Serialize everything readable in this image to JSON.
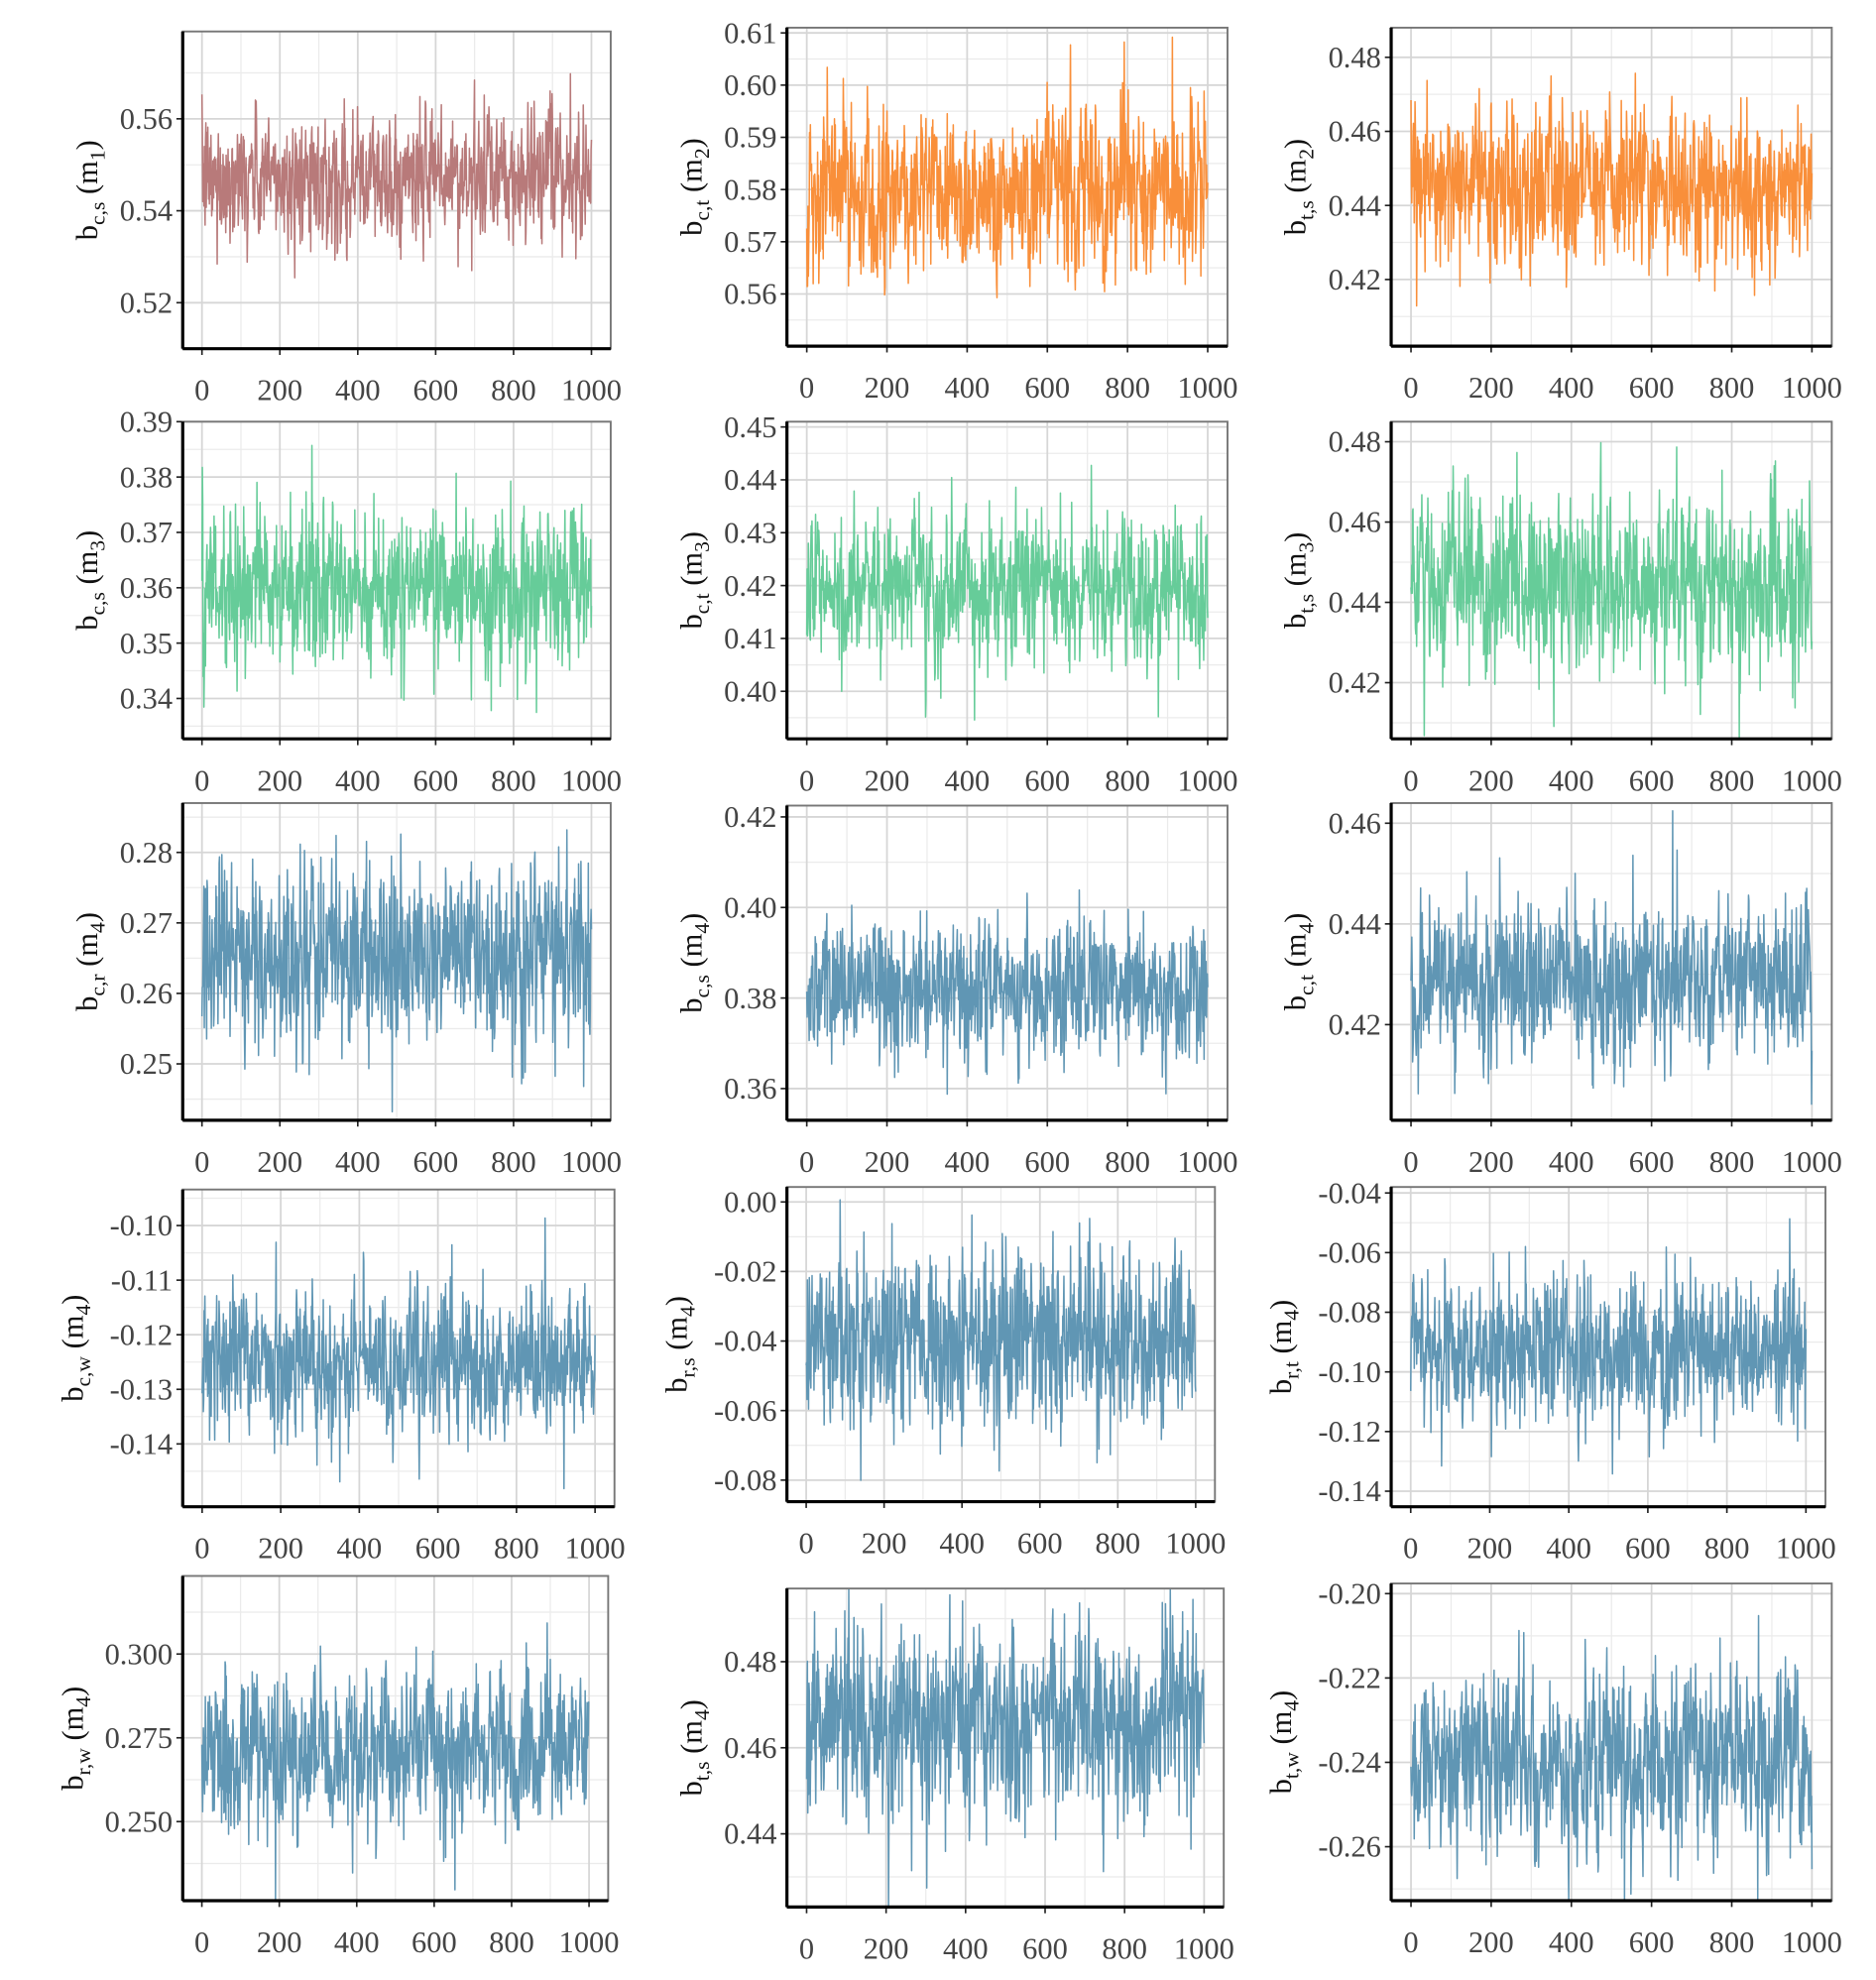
{
  "chart_data": [
    {
      "type": "line",
      "ylabel": {
        "b": "b",
        "sub": "c,s",
        "model": "m",
        "msub": "1"
      },
      "color": "#b87a7a",
      "n": 1000,
      "mean": 0.547,
      "sd": 0.0068,
      "ylim": [
        0.51,
        0.579
      ],
      "yticks": [
        0.52,
        0.54,
        0.56
      ],
      "ytick_labels": [
        "0.52",
        "0.54",
        "0.56"
      ],
      "xlim": [
        0,
        1000
      ],
      "xticks": [
        0,
        200,
        400,
        600,
        800,
        1000
      ],
      "xtick_labels": [
        "0",
        "200",
        "400",
        "600",
        "800",
        "1000"
      ],
      "grid": true
    },
    {
      "type": "line",
      "ylabel": {
        "b": "b",
        "sub": "c,t",
        "model": "m",
        "msub": "2"
      },
      "color": "#f98f3a",
      "n": 1000,
      "mean": 0.58,
      "sd": 0.0078,
      "ylim": [
        0.55,
        0.611
      ],
      "yticks": [
        0.56,
        0.57,
        0.58,
        0.59,
        0.6,
        0.61
      ],
      "ytick_labels": [
        "0.56",
        "0.57",
        "0.58",
        "0.59",
        "0.60",
        "0.61"
      ],
      "xlim": [
        0,
        1000
      ],
      "xticks": [
        0,
        200,
        400,
        600,
        800,
        1000
      ],
      "xtick_labels": [
        "0",
        "200",
        "400",
        "600",
        "800",
        "1000"
      ],
      "grid": true
    },
    {
      "type": "line",
      "ylabel": {
        "b": "b",
        "sub": "t,s",
        "model": "m",
        "msub": "2"
      },
      "color": "#f98f3a",
      "n": 1000,
      "mean": 0.445,
      "sd": 0.0105,
      "ylim": [
        0.402,
        0.488
      ],
      "yticks": [
        0.42,
        0.44,
        0.46,
        0.48
      ],
      "ytick_labels": [
        "0.42",
        "0.44",
        "0.46",
        "0.48"
      ],
      "xlim": [
        0,
        1000
      ],
      "xticks": [
        0,
        200,
        400,
        600,
        800,
        1000
      ],
      "xtick_labels": [
        "0",
        "200",
        "400",
        "600",
        "800",
        "1000"
      ],
      "grid": true
    },
    {
      "type": "line",
      "ylabel": {
        "b": "b",
        "sub": "c,s",
        "model": "m",
        "msub": "3"
      },
      "color": "#66cc99",
      "n": 1000,
      "mean": 0.36,
      "sd": 0.0068,
      "ylim": [
        0.3327,
        0.39
      ],
      "yticks": [
        0.34,
        0.35,
        0.36,
        0.37,
        0.38,
        0.39
      ],
      "ytick_labels": [
        "0.34",
        "0.35",
        "0.36",
        "0.37",
        "0.38",
        "0.39"
      ],
      "xlim": [
        0,
        1000
      ],
      "xticks": [
        0,
        200,
        400,
        600,
        800,
        1000
      ],
      "xtick_labels": [
        "0",
        "200",
        "400",
        "600",
        "800",
        "1000"
      ],
      "grid": true
    },
    {
      "type": "line",
      "ylabel": {
        "b": "b",
        "sub": "c,t",
        "model": "m",
        "msub": "3"
      },
      "color": "#66cc99",
      "n": 1000,
      "mean": 0.42,
      "sd": 0.0068,
      "ylim": [
        0.391,
        0.451
      ],
      "yticks": [
        0.4,
        0.41,
        0.42,
        0.43,
        0.44,
        0.45
      ],
      "ytick_labels": [
        "0.40",
        "0.41",
        "0.42",
        "0.43",
        "0.44",
        "0.45"
      ],
      "xlim": [
        0,
        1000
      ],
      "xticks": [
        0,
        200,
        400,
        600,
        800,
        1000
      ],
      "xtick_labels": [
        "0",
        "200",
        "400",
        "600",
        "800",
        "1000"
      ],
      "grid": true
    },
    {
      "type": "line",
      "ylabel": {
        "b": "b",
        "sub": "t,s",
        "model": "m",
        "msub": "3"
      },
      "color": "#66cc99",
      "n": 1000,
      "mean": 0.445,
      "sd": 0.0105,
      "ylim": [
        0.406,
        0.485
      ],
      "yticks": [
        0.42,
        0.44,
        0.46,
        0.48
      ],
      "ytick_labels": [
        "0.42",
        "0.44",
        "0.46",
        "0.48"
      ],
      "xlim": [
        0,
        1000
      ],
      "xticks": [
        0,
        200,
        400,
        600,
        800,
        1000
      ],
      "xtick_labels": [
        "0",
        "200",
        "400",
        "600",
        "800",
        "1000"
      ],
      "grid": true
    },
    {
      "type": "line",
      "ylabel": {
        "b": "b",
        "sub": "c,r",
        "model": "m",
        "msub": "4"
      },
      "color": "#6096b4",
      "n": 1000,
      "mean": 0.265,
      "sd": 0.0065,
      "ylim": [
        0.242,
        0.287
      ],
      "yticks": [
        0.25,
        0.26,
        0.27,
        0.28
      ],
      "ytick_labels": [
        "0.25",
        "0.26",
        "0.27",
        "0.28"
      ],
      "xlim": [
        0,
        1000
      ],
      "xticks": [
        0,
        200,
        400,
        600,
        800,
        1000
      ],
      "xtick_labels": [
        "0",
        "200",
        "400",
        "600",
        "800",
        "1000"
      ],
      "grid": true
    },
    {
      "type": "line",
      "ylabel": {
        "b": "b",
        "sub": "c,s",
        "model": "m",
        "msub": "4"
      },
      "color": "#6096b4",
      "n": 1000,
      "mean": 0.382,
      "sd": 0.0075,
      "ylim": [
        0.353,
        0.4225
      ],
      "yticks": [
        0.36,
        0.38,
        0.4,
        0.42
      ],
      "ytick_labels": [
        "0.36",
        "0.38",
        "0.40",
        "0.42"
      ],
      "xlim": [
        0,
        1000
      ],
      "xticks": [
        0,
        200,
        400,
        600,
        800,
        1000
      ],
      "xtick_labels": [
        "0",
        "200",
        "400",
        "600",
        "800",
        "1000"
      ],
      "grid": true
    },
    {
      "type": "line",
      "ylabel": {
        "b": "b",
        "sub": "c,t",
        "model": "m",
        "msub": "4"
      },
      "color": "#6096b4",
      "n": 1000,
      "mean": 0.429,
      "sd": 0.0078,
      "ylim": [
        0.401,
        0.464
      ],
      "yticks": [
        0.42,
        0.44,
        0.46
      ],
      "ytick_labels": [
        "0.42",
        "0.44",
        "0.46"
      ],
      "xlim": [
        0,
        1000
      ],
      "xticks": [
        0,
        200,
        400,
        600,
        800,
        1000
      ],
      "xtick_labels": [
        "0",
        "200",
        "400",
        "600",
        "800",
        "1000"
      ],
      "grid": true
    },
    {
      "type": "line",
      "ylabel": {
        "b": "b",
        "sub": "c,w",
        "model": "m",
        "msub": "4"
      },
      "color": "#6096b4",
      "n": 1000,
      "mean": -0.125,
      "sd": 0.0065,
      "ylim": [
        -0.1515,
        -0.0934
      ],
      "yticks": [
        -0.14,
        -0.13,
        -0.12,
        -0.11,
        -0.1
      ],
      "ytick_labels": [
        "-0.14",
        "-0.13",
        "-0.12",
        "-0.11",
        "-0.10"
      ],
      "xlim": [
        0,
        1000
      ],
      "xticks": [
        0,
        200,
        400,
        600,
        800,
        1000
      ],
      "xtick_labels": [
        "0",
        "200",
        "400",
        "600",
        "800",
        "1000"
      ],
      "grid": true
    },
    {
      "type": "line",
      "ylabel": {
        "b": "b",
        "sub": "r,s",
        "model": "m",
        "msub": "4"
      },
      "color": "#6096b4",
      "n": 1000,
      "mean": -0.04,
      "sd": 0.0125,
      "ylim": [
        -0.0862,
        0.0043
      ],
      "yticks": [
        -0.08,
        -0.06,
        -0.04,
        -0.02,
        0.0
      ],
      "ytick_labels": [
        "-0.08",
        "-0.06",
        "-0.04",
        "-0.02",
        "0.00"
      ],
      "xlim": [
        0,
        1000
      ],
      "xticks": [
        0,
        200,
        400,
        600,
        800,
        1000
      ],
      "xtick_labels": [
        "0",
        "200",
        "400",
        "600",
        "800",
        "1000"
      ],
      "grid": true
    },
    {
      "type": "line",
      "ylabel": {
        "b": "b",
        "sub": "r,t",
        "model": "m",
        "msub": "4"
      },
      "color": "#6096b4",
      "n": 1000,
      "mean": -0.092,
      "sd": 0.0125,
      "ylim": [
        -0.1452,
        -0.038
      ],
      "yticks": [
        -0.14,
        -0.12,
        -0.1,
        -0.08,
        -0.06,
        -0.04
      ],
      "ytick_labels": [
        "-0.14",
        "-0.12",
        "-0.10",
        "-0.08",
        "-0.06",
        "-0.04"
      ],
      "xlim": [
        0,
        1000
      ],
      "xticks": [
        0,
        200,
        400,
        600,
        800,
        1000
      ],
      "xtick_labels": [
        "0",
        "200",
        "400",
        "600",
        "800",
        "1000"
      ],
      "grid": true
    },
    {
      "type": "line",
      "ylabel": {
        "b": "b",
        "sub": "r,w",
        "model": "m",
        "msub": "4"
      },
      "color": "#6096b4",
      "n": 1000,
      "mean": 0.27,
      "sd": 0.0115,
      "ylim": [
        0.2264,
        0.3233
      ],
      "yticks": [
        0.25,
        0.275,
        0.3
      ],
      "ytick_labels": [
        "0.250",
        "0.275",
        "0.300"
      ],
      "xlim": [
        0,
        1000
      ],
      "xticks": [
        0,
        200,
        400,
        600,
        800,
        1000
      ],
      "xtick_labels": [
        "0",
        "200",
        "400",
        "600",
        "800",
        "1000"
      ],
      "grid": true
    },
    {
      "type": "line",
      "ylabel": {
        "b": "b",
        "sub": "t,s",
        "model": "m",
        "msub": "4"
      },
      "color": "#6096b4",
      "n": 1000,
      "mean": 0.466,
      "sd": 0.0105,
      "ylim": [
        0.423,
        0.497
      ],
      "yticks": [
        0.44,
        0.46,
        0.48
      ],
      "ytick_labels": [
        "0.44",
        "0.46",
        "0.48"
      ],
      "xlim": [
        0,
        1000
      ],
      "xticks": [
        0,
        200,
        400,
        600,
        800,
        1000
      ],
      "xtick_labels": [
        "0",
        "200",
        "400",
        "600",
        "800",
        "1000"
      ],
      "grid": true
    },
    {
      "type": "line",
      "ylabel": {
        "b": "b",
        "sub": "t,w",
        "model": "m",
        "msub": "4"
      },
      "color": "#6096b4",
      "n": 1000,
      "mean": -0.24,
      "sd": 0.0105,
      "ylim": [
        -0.2728,
        -0.1976
      ],
      "yticks": [
        -0.26,
        -0.24,
        -0.22,
        -0.2
      ],
      "ytick_labels": [
        "-0.26",
        "-0.24",
        "-0.22",
        "-0.20"
      ],
      "xlim": [
        0,
        1000
      ],
      "xticks": [
        0,
        200,
        400,
        600,
        800,
        1000
      ],
      "xtick_labels": [
        "0",
        "200",
        "400",
        "600",
        "800",
        "1000"
      ],
      "grid": true
    }
  ]
}
